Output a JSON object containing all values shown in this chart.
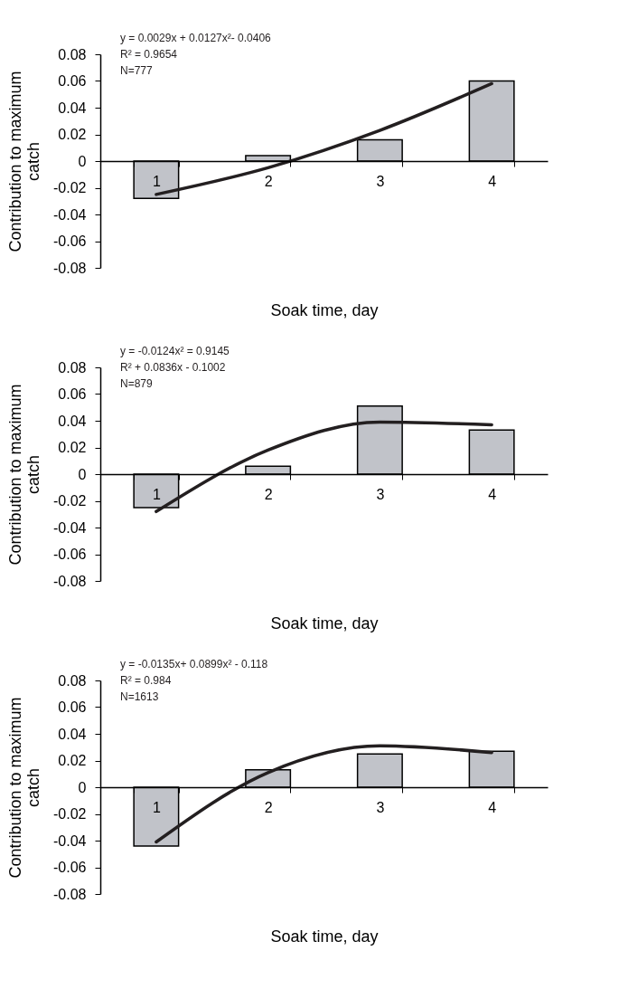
{
  "chart_data": [
    {
      "type": "bar",
      "categories": [
        "1",
        "2",
        "3",
        "4"
      ],
      "xlabel": "Soak time, day",
      "ylabel": "Contribution to maximum catch",
      "ylim": [
        -0.08,
        0.08
      ],
      "yticks": [
        -0.08,
        -0.06,
        -0.04,
        -0.02,
        0,
        0.02,
        0.04,
        0.06,
        0.08
      ],
      "grid": false,
      "marker": "none",
      "line_style": "solid",
      "series": [
        {
          "type": "bar",
          "color": "#c1c3c9",
          "values": [
            -0.028,
            0.004,
            0.016,
            0.06
          ]
        },
        {
          "type": "line",
          "color": "#231f20",
          "x": [
            "1",
            "2",
            "3",
            "4"
          ],
          "values": [
            -0.025,
            -0.005,
            0.023,
            0.058
          ]
        }
      ],
      "annotations": [
        "y = 0.0029x + 0.0127x²- 0.0406",
        "R² = 0.9654",
        "N=777"
      ]
    },
    {
      "type": "bar",
      "categories": [
        "1",
        "2",
        "3",
        "4"
      ],
      "xlabel": "Soak time, day",
      "ylabel": "Contribution to maximum catch",
      "ylim": [
        -0.08,
        0.08
      ],
      "yticks": [
        -0.08,
        -0.06,
        -0.04,
        -0.02,
        0,
        0.02,
        0.04,
        0.06,
        0.08
      ],
      "grid": false,
      "marker": "none",
      "line_style": "solid",
      "series": [
        {
          "type": "bar",
          "color": "#c1c3c9",
          "values": [
            -0.025,
            0.006,
            0.051,
            0.033
          ]
        },
        {
          "type": "line",
          "color": "#231f20",
          "x": [
            "1",
            "2",
            "3",
            "4"
          ],
          "values": [
            -0.028,
            0.018,
            0.039,
            0.037
          ]
        }
      ],
      "annotations": [
        "y = -0.0124x² = 0.9145",
        "R² + 0.0836x - 0.1002",
        "N=879"
      ]
    },
    {
      "type": "bar",
      "categories": [
        "1",
        "2",
        "3",
        "4"
      ],
      "xlabel": "Soak time, day",
      "ylabel": "Contribution to maximum catch",
      "ylim": [
        -0.08,
        0.08
      ],
      "yticks": [
        -0.08,
        -0.06,
        -0.04,
        -0.02,
        0,
        0.02,
        0.04,
        0.06,
        0.08
      ],
      "grid": false,
      "marker": "none",
      "line_style": "solid",
      "series": [
        {
          "type": "bar",
          "color": "#c1c3c9",
          "values": [
            -0.044,
            0.013,
            0.025,
            0.027
          ]
        },
        {
          "type": "line",
          "color": "#231f20",
          "x": [
            "1",
            "2",
            "3",
            "4"
          ],
          "values": [
            -0.041,
            0.011,
            0.031,
            0.026
          ]
        }
      ],
      "annotations": [
        "y = -0.0135x+ 0.0899x²  - 0.118",
        "R² = 0.984",
        "N=1613"
      ]
    }
  ]
}
